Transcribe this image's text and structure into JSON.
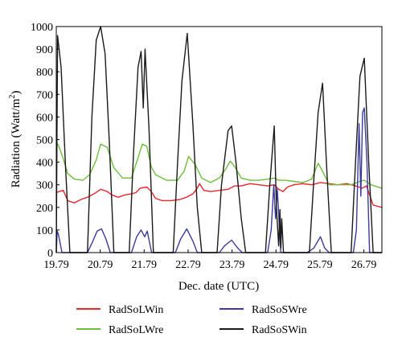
{
  "chart_data": {
    "type": "line",
    "title": "",
    "xlabel": "Dec. date (UTC)",
    "ylabel_main": "Radiation (Watt/m",
    "ylabel_sup": "2",
    "ylabel_close": ")",
    "xlim": [
      19.79,
      27.2
    ],
    "ylim": [
      0,
      1000
    ],
    "x_ticks": [
      19.79,
      20.79,
      21.79,
      22.79,
      23.79,
      24.79,
      25.79,
      26.79
    ],
    "x_tick_labels": [
      "19.79",
      "20.79",
      "21.79",
      "22.79",
      "23.79",
      "24.79",
      "25.79",
      "26.79"
    ],
    "y_ticks": [
      0,
      100,
      200,
      300,
      400,
      500,
      600,
      700,
      800,
      900,
      1000
    ],
    "y_tick_labels": [
      "0",
      "100",
      "200",
      "300",
      "400",
      "500",
      "600",
      "700",
      "800",
      "900",
      "1000"
    ],
    "grid": false,
    "legend_position": "bottom",
    "series": [
      {
        "name": "RadSoLWin",
        "color": "#e8262b",
        "x": [
          19.79,
          19.85,
          19.95,
          20.05,
          20.2,
          20.35,
          20.5,
          20.65,
          20.8,
          20.95,
          21.05,
          21.2,
          21.35,
          21.5,
          21.6,
          21.7,
          21.85,
          21.95,
          22.05,
          22.2,
          22.4,
          22.6,
          22.75,
          22.9,
          23.0,
          23.05,
          23.15,
          23.3,
          23.5,
          23.7,
          23.85,
          24.0,
          24.2,
          24.4,
          24.6,
          24.75,
          24.85,
          24.95,
          25.05,
          25.2,
          25.4,
          25.6,
          25.8,
          26.0,
          26.2,
          26.4,
          26.6,
          26.75,
          26.85,
          27.0,
          27.2
        ],
        "y": [
          265,
          270,
          275,
          230,
          220,
          235,
          245,
          260,
          280,
          270,
          255,
          245,
          255,
          260,
          265,
          285,
          290,
          270,
          240,
          230,
          230,
          235,
          245,
          260,
          285,
          305,
          275,
          270,
          275,
          280,
          295,
          295,
          305,
          300,
          295,
          300,
          280,
          270,
          290,
          300,
          305,
          300,
          310,
          305,
          300,
          305,
          295,
          285,
          295,
          210,
          200
        ]
      },
      {
        "name": "RadSoLWre",
        "color": "#6cbf3b",
        "x": [
          19.79,
          19.85,
          19.95,
          20.05,
          20.2,
          20.4,
          20.55,
          20.7,
          20.8,
          20.95,
          21.1,
          21.3,
          21.5,
          21.65,
          21.75,
          21.85,
          21.95,
          22.05,
          22.3,
          22.55,
          22.7,
          22.8,
          22.95,
          23.1,
          23.3,
          23.5,
          23.65,
          23.75,
          23.85,
          24.0,
          24.2,
          24.4,
          24.6,
          24.75,
          24.85,
          25.0,
          25.2,
          25.4,
          25.6,
          25.75,
          25.85,
          26.0,
          26.2,
          26.5,
          26.7,
          26.8,
          26.95,
          27.2
        ],
        "y": [
          490,
          470,
          415,
          350,
          325,
          320,
          345,
          410,
          480,
          465,
          375,
          330,
          330,
          420,
          480,
          470,
          380,
          345,
          320,
          320,
          360,
          425,
          390,
          330,
          310,
          330,
          370,
          405,
          380,
          330,
          320,
          320,
          325,
          330,
          320,
          320,
          315,
          310,
          325,
          395,
          360,
          300,
          300,
          300,
          315,
          320,
          300,
          285
        ]
      },
      {
        "name": "RadSoSWre",
        "color": "#3b3b9e",
        "x": [
          19.79,
          19.81,
          19.84,
          19.92,
          20.5,
          20.62,
          20.72,
          20.82,
          20.92,
          21.02,
          21.5,
          21.62,
          21.72,
          21.8,
          21.86,
          21.96,
          22.5,
          22.62,
          22.76,
          22.9,
          23.0,
          23.5,
          23.62,
          23.78,
          23.92,
          24.02,
          24.6,
          24.68,
          24.74,
          24.78,
          24.82,
          24.9,
          25.5,
          25.65,
          25.8,
          25.9,
          26.0,
          26.55,
          26.62,
          26.68,
          26.72,
          26.76,
          26.8,
          26.86,
          26.92,
          27.2
        ],
        "y": [
          0,
          95,
          80,
          0,
          0,
          50,
          95,
          105,
          60,
          0,
          0,
          70,
          100,
          70,
          95,
          0,
          0,
          60,
          105,
          50,
          0,
          0,
          30,
          55,
          20,
          0,
          0,
          100,
          300,
          150,
          280,
          0,
          0,
          20,
          70,
          20,
          0,
          0,
          100,
          570,
          250,
          620,
          640,
          400,
          0,
          0
        ]
      },
      {
        "name": "RadSoSWin",
        "color": "#1a1a1a",
        "x": [
          19.79,
          19.82,
          19.9,
          20.0,
          20.1,
          20.5,
          20.6,
          20.7,
          20.8,
          20.9,
          21.0,
          21.1,
          21.45,
          21.55,
          21.65,
          21.72,
          21.77,
          21.81,
          21.9,
          22.0,
          22.45,
          22.55,
          22.65,
          22.77,
          22.9,
          23.0,
          23.1,
          23.45,
          23.55,
          23.7,
          23.78,
          23.88,
          24.0,
          24.1,
          24.55,
          24.65,
          24.75,
          24.8,
          24.85,
          24.88,
          24.9,
          24.92,
          24.96,
          25.0,
          25.55,
          25.65,
          25.75,
          25.85,
          25.95,
          26.05,
          26.5,
          26.6,
          26.7,
          26.8,
          26.9,
          27.0,
          27.2
        ],
        "y": [
          0,
          960,
          820,
          380,
          0,
          0,
          600,
          940,
          1000,
          880,
          480,
          0,
          0,
          450,
          820,
          890,
          640,
          900,
          550,
          0,
          0,
          400,
          760,
          970,
          560,
          200,
          0,
          0,
          300,
          540,
          560,
          400,
          150,
          0,
          0,
          300,
          560,
          200,
          30,
          190,
          20,
          150,
          0,
          0,
          0,
          320,
          620,
          750,
          350,
          0,
          0,
          400,
          780,
          860,
          400,
          0,
          0
        ]
      }
    ]
  }
}
